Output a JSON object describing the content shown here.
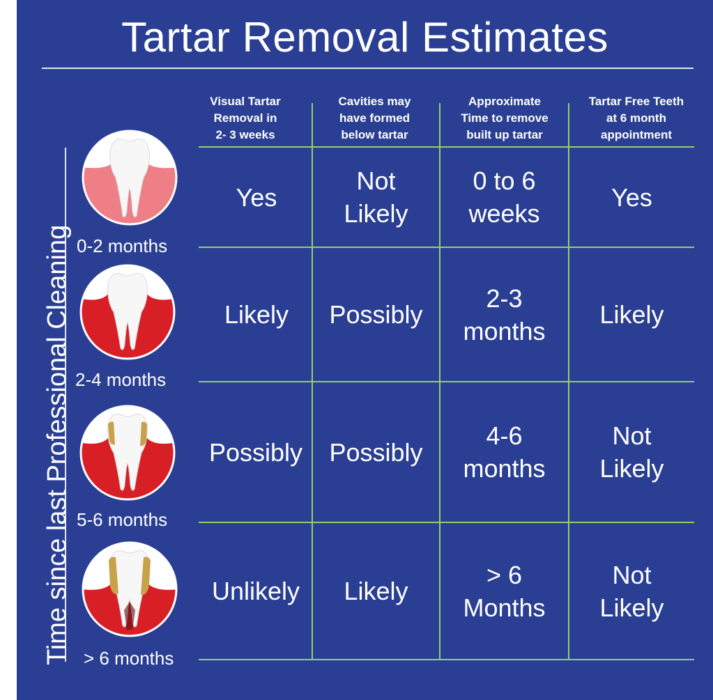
{
  "title": "Tartar Removal Estimates",
  "side_label": "Time since last Professional Cleaning",
  "columns": [
    "Visual Tartar\nRemoval in\n2- 3 weeks",
    "Cavities may\nhave formed\nbelow tartar",
    "Approximate\nTime to remove\nbuilt up tartar",
    "Tartar Free Teeth\nat 6 month\nappointment"
  ],
  "rows": [
    {
      "label": "0-2 months",
      "tooth_icon": "healthy-tooth-icon",
      "cells": [
        "Yes",
        "Not\nLikely",
        "0 to 6\nweeks",
        "Yes"
      ]
    },
    {
      "label": "2-4 months",
      "tooth_icon": "inflamed-gum-tooth-icon",
      "cells": [
        "Likely",
        "Possibly",
        "2-3\nmonths",
        "Likely"
      ]
    },
    {
      "label": "5-6 months",
      "tooth_icon": "tartar-tooth-icon",
      "cells": [
        "Possibly",
        "Possibly",
        "4-6\nmonths",
        "Not\nLikely"
      ]
    },
    {
      "label": "> 6 months",
      "tooth_icon": "heavy-tartar-tooth-icon",
      "cells": [
        "Unlikely",
        "Likely",
        "> 6\nMonths",
        "Not\nLikely"
      ]
    }
  ],
  "colors": {
    "background": "#2a3f93",
    "grid": "#8fd06e",
    "text": "#ffffff",
    "gum_healthy": "#ef7f86",
    "gum_inflamed": "#d91f26",
    "tartar": "#c8a24a"
  }
}
